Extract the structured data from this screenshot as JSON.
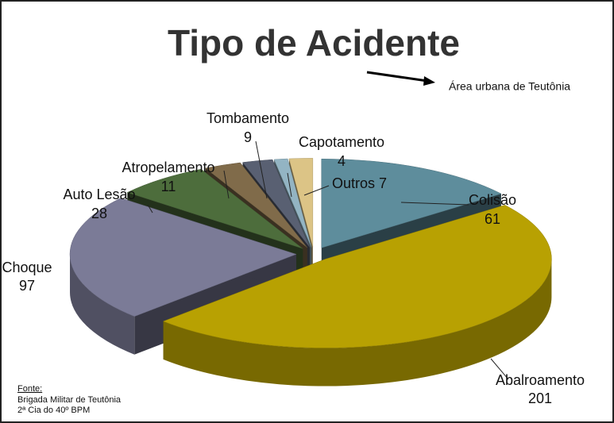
{
  "chart_data": {
    "type": "pie3d",
    "title": "Tipo de Acidente",
    "annotation": "Área urbana de Teutônia",
    "source": {
      "heading": "Fonte:",
      "lines": [
        "Brigada Militar de Teutônia",
        "2ª Cia do 40º BPM"
      ]
    },
    "categories": [
      "Colisão",
      "Abalroamento",
      "Choque",
      "Auto Lesão",
      "Atropelamento",
      "Tombamento",
      "Capotamento",
      "Outros"
    ],
    "values": [
      61,
      201,
      97,
      28,
      11,
      9,
      4,
      7
    ],
    "colors": [
      "#5e8d9c",
      "#b8a102",
      "#7b7b97",
      "#4d6d3c",
      "#806b4a",
      "#596072",
      "#93b4c3",
      "#dcc486"
    ]
  }
}
